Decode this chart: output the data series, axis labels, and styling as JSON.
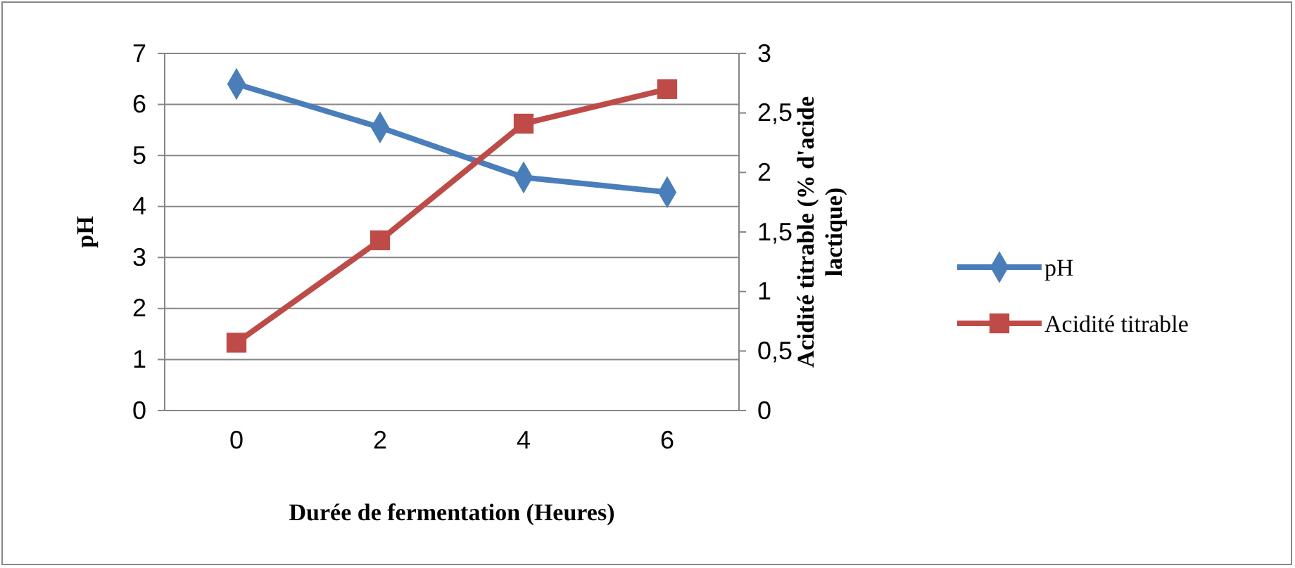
{
  "chart_data": {
    "type": "line",
    "xlabel": "Durée de fermentation (Heures)",
    "ylabel": "pH",
    "y2label": "Acidité titrable (% d'acide\nlactique)",
    "categories": [
      "0",
      "2",
      "4",
      "6"
    ],
    "series": [
      {
        "name": "pH",
        "color": "#4a7ebb",
        "marker": "diamond",
        "values": [
          6.4,
          5.55,
          4.57,
          4.28
        ]
      },
      {
        "name": "Acidité titrable",
        "color": "#be4b48",
        "marker": "square",
        "axis": "y2",
        "values": [
          0.57,
          1.43,
          2.41,
          2.7
        ]
      }
    ],
    "ylim": [
      0,
      7
    ],
    "yticks": [
      0,
      1,
      2,
      3,
      4,
      5,
      6,
      7
    ],
    "y2lim": [
      0,
      3
    ],
    "y2ticks": [
      0,
      {
        "value": 0.5,
        "label": "0,5"
      },
      1,
      {
        "value": 1.5,
        "label": "1,5"
      },
      2,
      {
        "value": 2.5,
        "label": "2,5"
      },
      3
    ],
    "grid": "y",
    "legend": "right"
  }
}
